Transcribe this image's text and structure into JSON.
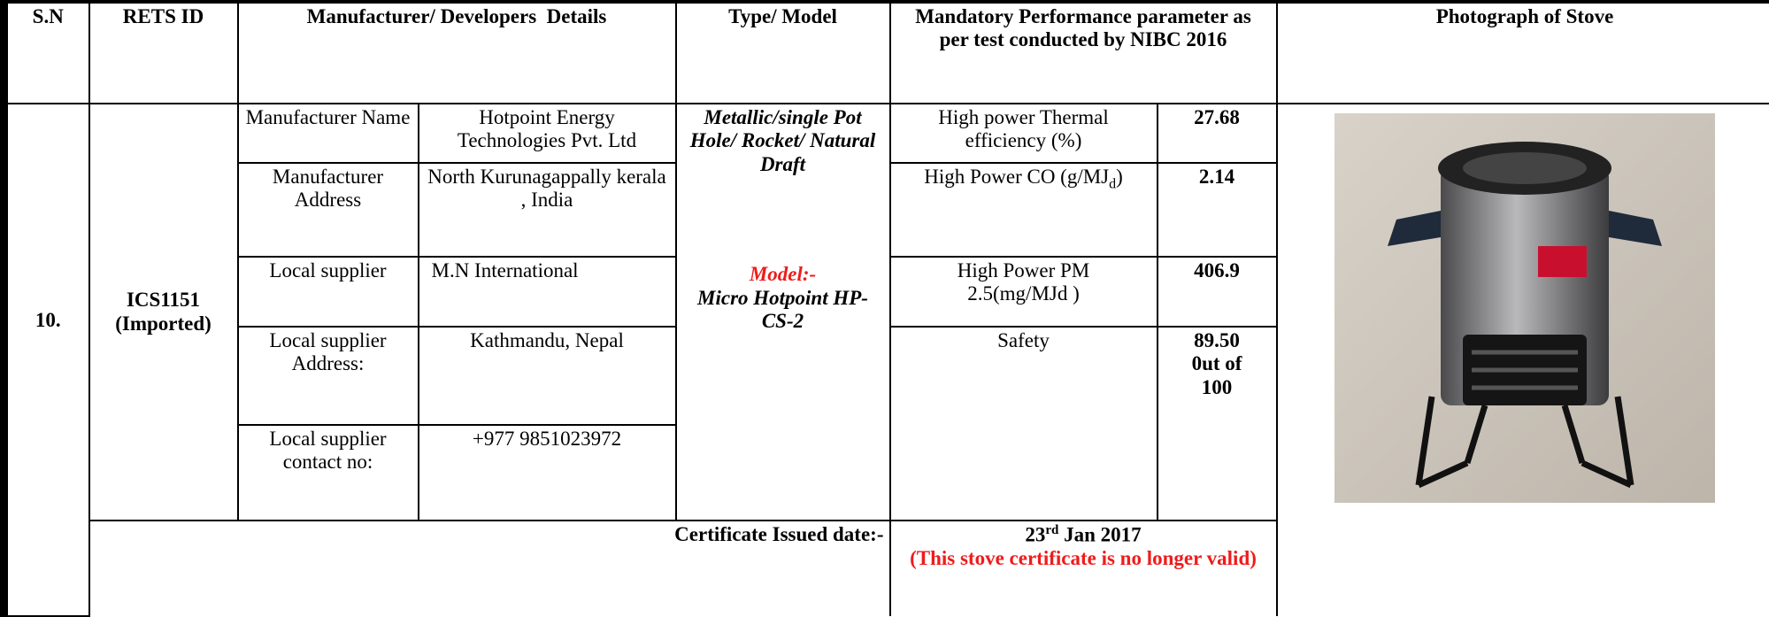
{
  "header": {
    "sn": "S.N",
    "rets_id": "RETS ID",
    "manufacturer": "Manufacturer/ Developers  Details",
    "type_model": "Type/ Model",
    "performance": "Mandatory Performance parameter as per test conducted by  NIBC 2016",
    "photo": "Photograph of Stove"
  },
  "record": {
    "sn": "10.",
    "rets_id": "ICS1151",
    "rets_note": "(Imported)",
    "details": [
      {
        "label": "Manufacturer Name",
        "value": "Hotpoint Energy Technologies Pvt. Ltd"
      },
      {
        "label": "Manufacturer Address",
        "value": "North Kurunagappally kerala , India"
      },
      {
        "label": "Local supplier",
        "value": "M.N International"
      },
      {
        "label": "Local supplier Address:",
        "value": "Kathmandu, Nepal"
      },
      {
        "label": "Local supplier contact no:",
        "value": "+977 9851023972"
      }
    ],
    "type": "Metallic/single Pot Hole/ Rocket/ Natural Draft",
    "model_label": "Model:-",
    "model": "Micro Hotpoint HP-CS-2",
    "parameters": [
      {
        "name": "High power Thermal efficiency (%)",
        "value": "27.68"
      },
      {
        "name": "High Power CO (g/MJ",
        "subscript": "d",
        "suffix": ")",
        "value": "2.14"
      },
      {
        "name": "High Power PM 2.5(mg/MJd )",
        "value": "406.9"
      },
      {
        "name": "Safety",
        "value": "89.50 0ut of 100"
      }
    ],
    "certificate_label": "Certificate Issued date:-",
    "certificate_day": "23",
    "certificate_day_suffix": "rd",
    "certificate_rest": " Jan 2017",
    "certificate_note": "(This stove certificate is no longer valid)"
  }
}
